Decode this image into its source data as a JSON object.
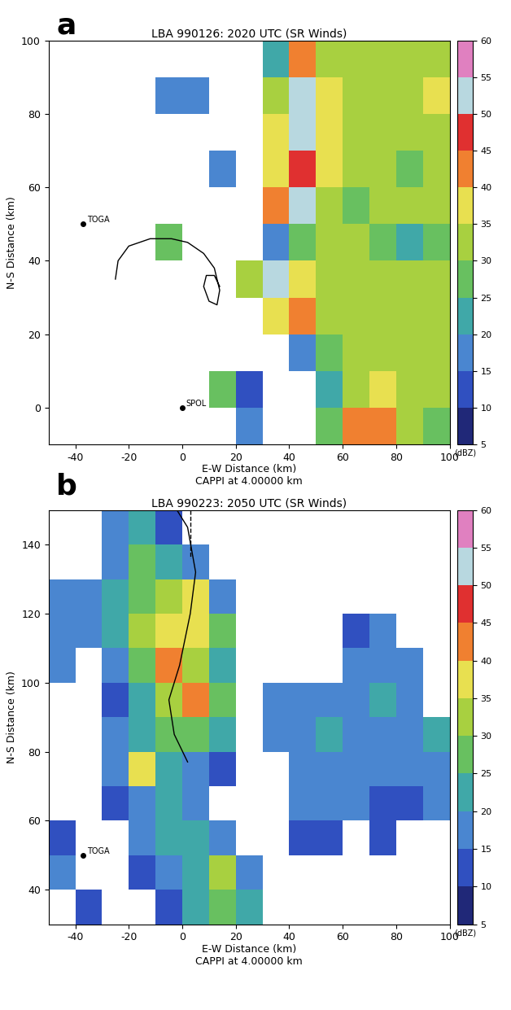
{
  "chart_data": [
    {
      "type": "heatmap",
      "panel": "a",
      "title": "LBA 990126: 2020 UTC (SR Winds)",
      "x_label": "E-W Distance (km)\nCAPPI at 4.00000 km",
      "y_label": "N-S Distance (km)",
      "xlim": [
        -50,
        100
      ],
      "ylim": [
        -10,
        100
      ],
      "xticks": [
        -40,
        -20,
        0,
        20,
        40,
        60,
        80,
        100
      ],
      "yticks": [
        0,
        20,
        40,
        60,
        80,
        100
      ],
      "x": [
        -45,
        -35,
        -25,
        -15,
        -5,
        5,
        15,
        25,
        35,
        45,
        55,
        65,
        75,
        85,
        95
      ],
      "y": [
        95,
        85,
        75,
        65,
        55,
        45,
        35,
        25,
        15,
        5,
        -5
      ],
      "cells": [
        [
          null,
          null,
          null,
          null,
          null,
          null,
          null,
          null,
          20,
          40,
          30,
          30,
          30,
          30,
          30
        ],
        [
          null,
          null,
          null,
          null,
          15,
          15,
          null,
          null,
          30,
          50,
          35,
          30,
          30,
          30,
          35
        ],
        [
          null,
          null,
          null,
          null,
          null,
          null,
          null,
          null,
          35,
          50,
          35,
          30,
          30,
          30,
          30
        ],
        [
          null,
          null,
          null,
          null,
          null,
          null,
          15,
          null,
          35,
          45,
          35,
          30,
          30,
          25,
          30
        ],
        [
          null,
          null,
          null,
          null,
          null,
          null,
          null,
          null,
          40,
          50,
          30,
          25,
          30,
          30,
          30
        ],
        [
          null,
          null,
          null,
          null,
          25,
          null,
          null,
          null,
          15,
          25,
          30,
          30,
          25,
          20,
          25
        ],
        [
          null,
          null,
          null,
          null,
          null,
          null,
          null,
          30,
          50,
          35,
          30,
          30,
          30,
          30,
          30
        ],
        [
          null,
          null,
          null,
          null,
          null,
          null,
          null,
          null,
          35,
          40,
          30,
          30,
          30,
          30,
          30
        ],
        [
          null,
          null,
          null,
          null,
          null,
          null,
          null,
          null,
          null,
          15,
          25,
          30,
          30,
          30,
          30
        ],
        [
          null,
          null,
          null,
          null,
          null,
          null,
          25,
          10,
          null,
          null,
          20,
          30,
          35,
          30,
          30
        ],
        [
          null,
          null,
          null,
          null,
          null,
          null,
          null,
          15,
          null,
          null,
          25,
          40,
          40,
          30,
          25
        ]
      ],
      "colorbar": {
        "range": [
          5,
          60
        ],
        "ticks": [
          5,
          10,
          15,
          20,
          25,
          30,
          35,
          40,
          45,
          50,
          55,
          60
        ],
        "label": "(dBZ)"
      },
      "sites": [
        {
          "name": "TOGA",
          "x": -37,
          "y": 50
        },
        {
          "name": "SPOL",
          "x": 0,
          "y": 0
        }
      ],
      "tracks": [
        {
          "line_style": "solid",
          "x": [
            -25,
            -24,
            -20,
            -12,
            -4,
            2,
            8,
            12,
            14,
            13,
            10,
            8,
            9,
            12,
            14
          ],
          "y": [
            35,
            40,
            44,
            46,
            46,
            45,
            42,
            38,
            32,
            28,
            29,
            33,
            36,
            36,
            33
          ]
        }
      ]
    },
    {
      "type": "heatmap",
      "panel": "b",
      "title": "LBA 990223: 2050 UTC (SR Winds)",
      "x_label": "E-W Distance (km)\nCAPPI at 4.00000 km",
      "y_label": "N-S Distance (km)",
      "xlim": [
        -50,
        100
      ],
      "ylim": [
        30,
        150
      ],
      "xticks": [
        -40,
        -20,
        0,
        20,
        40,
        60,
        80,
        100
      ],
      "yticks": [
        40,
        60,
        80,
        100,
        120,
        140
      ],
      "x": [
        -45,
        -35,
        -25,
        -15,
        -5,
        5,
        15,
        25,
        35,
        45,
        55,
        65,
        75,
        85,
        95
      ],
      "y": [
        145,
        135,
        125,
        115,
        105,
        95,
        85,
        75,
        65,
        55,
        45,
        35
      ],
      "cells": [
        [
          null,
          null,
          15,
          20,
          10,
          null,
          null,
          null,
          null,
          null,
          null,
          null,
          null,
          null,
          null
        ],
        [
          null,
          null,
          15,
          25,
          20,
          15,
          null,
          null,
          null,
          null,
          null,
          null,
          null,
          null,
          null
        ],
        [
          15,
          15,
          20,
          25,
          30,
          35,
          15,
          null,
          null,
          null,
          null,
          null,
          null,
          null,
          null
        ],
        [
          15,
          15,
          20,
          30,
          35,
          35,
          25,
          null,
          null,
          null,
          null,
          10,
          15,
          null,
          null
        ],
        [
          15,
          null,
          15,
          25,
          40,
          30,
          20,
          null,
          null,
          null,
          null,
          15,
          15,
          15,
          null
        ],
        [
          null,
          null,
          10,
          20,
          30,
          40,
          25,
          null,
          15,
          15,
          15,
          15,
          20,
          15,
          null
        ],
        [
          null,
          null,
          15,
          20,
          25,
          25,
          20,
          null,
          15,
          15,
          20,
          15,
          15,
          15,
          20
        ],
        [
          null,
          null,
          15,
          35,
          20,
          15,
          10,
          null,
          null,
          15,
          15,
          15,
          15,
          15,
          15
        ],
        [
          null,
          null,
          10,
          15,
          20,
          15,
          null,
          null,
          null,
          15,
          15,
          15,
          10,
          10,
          15
        ],
        [
          10,
          null,
          null,
          15,
          20,
          20,
          15,
          null,
          null,
          10,
          10,
          null,
          10,
          null,
          null
        ],
        [
          15,
          null,
          null,
          10,
          15,
          20,
          30,
          15,
          null,
          null,
          null,
          null,
          null,
          null,
          null
        ],
        [
          null,
          10,
          null,
          null,
          10,
          20,
          25,
          20,
          null,
          null,
          null,
          null,
          null,
          null,
          null
        ]
      ],
      "colorbar": {
        "range": [
          5,
          60
        ],
        "ticks": [
          5,
          10,
          15,
          20,
          25,
          30,
          35,
          40,
          45,
          50,
          55,
          60
        ],
        "label": "(dBZ)"
      },
      "sites": [
        {
          "name": "TOGA",
          "x": -37,
          "y": 50
        }
      ],
      "tracks": [
        {
          "line_style": "solid",
          "x": [
            -2,
            2,
            5,
            3,
            -1,
            -5,
            -3,
            2
          ],
          "y": [
            150,
            145,
            132,
            120,
            105,
            95,
            85,
            77
          ]
        },
        {
          "line_style": "dashed",
          "x": [
            3,
            3
          ],
          "y": [
            150,
            136
          ]
        }
      ]
    }
  ]
}
